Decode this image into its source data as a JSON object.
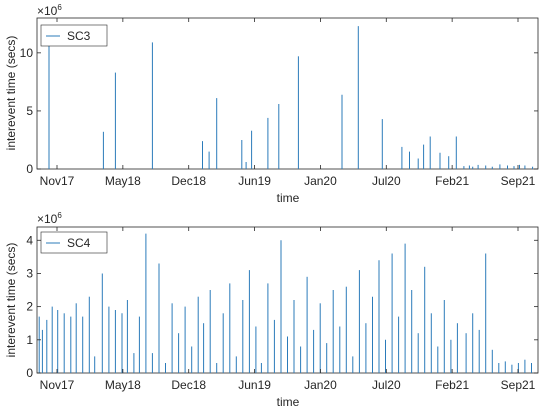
{
  "chart_data": [
    {
      "type": "bar",
      "series": [
        {
          "name": "SC3",
          "color": "#2b7bba"
        }
      ],
      "xlabel": "time",
      "ylabel": "interevent time (secs)",
      "exponent_label": "×10",
      "exponent_power": "6",
      "xticks": [
        "Nov17",
        "May18",
        "Dec18",
        "Jun19",
        "Jan20",
        "Jul20",
        "Feb21",
        "Sep21"
      ],
      "xlim": [
        0,
        46
      ],
      "ylim": [
        0,
        13
      ],
      "yticks": [
        0,
        5,
        10
      ],
      "legend_position": "top-left",
      "grid": false,
      "x": [
        1.1,
        6.1,
        7.2,
        10.6,
        15.2,
        15.8,
        16.5,
        18.8,
        19.2,
        19.7,
        21.2,
        22.2,
        24.0,
        28.0,
        29.5,
        31.7,
        33.5,
        34.2,
        35.0,
        35.5,
        36.1,
        37.0,
        37.8,
        38.5,
        39.2,
        39.7,
        40.0,
        40.5,
        41.2,
        41.8,
        42.5,
        43.2,
        43.8,
        44.3,
        44.8,
        45.5
      ],
      "values": [
        11.8,
        3.2,
        8.3,
        10.9,
        2.4,
        1.5,
        6.1,
        2.5,
        0.6,
        3.3,
        4.4,
        5.6,
        9.7,
        6.4,
        12.3,
        4.3,
        1.9,
        1.5,
        0.9,
        2.1,
        2.8,
        1.4,
        1.1,
        2.8,
        0.25,
        0.3,
        0.2,
        0.35,
        0.3,
        0.2,
        0.4,
        0.3,
        0.25,
        0.35,
        0.3,
        0.2
      ]
    },
    {
      "type": "bar",
      "series": [
        {
          "name": "SC4",
          "color": "#2b7bba"
        }
      ],
      "xlabel": "time",
      "ylabel": "interevent time (secs)",
      "exponent_label": "×10",
      "exponent_power": "6",
      "xticks": [
        "Nov17",
        "May18",
        "Dec18",
        "Jun19",
        "Jan20",
        "Jul20",
        "Feb21",
        "Sep21"
      ],
      "xlim": [
        0,
        46
      ],
      "ylim": [
        0,
        4.4
      ],
      "yticks": [
        0,
        1,
        2,
        3,
        4
      ],
      "legend_position": "top-left",
      "grid": false,
      "x": [
        0.2,
        0.5,
        0.9,
        1.4,
        1.9,
        2.5,
        3.1,
        3.6,
        4.2,
        4.8,
        5.3,
        6.0,
        6.6,
        7.2,
        7.8,
        8.3,
        8.9,
        9.4,
        10.0,
        10.6,
        11.2,
        11.8,
        12.4,
        13.0,
        13.6,
        14.2,
        14.8,
        15.3,
        15.9,
        16.5,
        17.1,
        17.7,
        18.3,
        18.9,
        19.5,
        20.1,
        20.6,
        21.2,
        21.8,
        22.4,
        23.0,
        23.6,
        24.2,
        24.8,
        25.4,
        26.0,
        26.6,
        27.2,
        27.8,
        28.4,
        29.0,
        29.6,
        30.2,
        30.8,
        31.4,
        32.0,
        32.6,
        33.2,
        33.8,
        34.4,
        35.0,
        35.6,
        36.2,
        36.8,
        37.4,
        38.0,
        38.6,
        39.4,
        40.0,
        40.6,
        41.2,
        41.8,
        42.4,
        43.0,
        43.6,
        44.2,
        44.8,
        45.4
      ],
      "values": [
        1.7,
        1.3,
        1.6,
        2.0,
        1.9,
        1.8,
        1.7,
        2.1,
        1.7,
        2.3,
        0.5,
        3.0,
        2.0,
        1.9,
        1.8,
        2.2,
        0.6,
        1.7,
        4.2,
        0.6,
        3.3,
        0.3,
        2.1,
        1.2,
        2.0,
        0.8,
        2.3,
        1.5,
        2.5,
        0.3,
        1.8,
        2.7,
        0.5,
        2.2,
        3.1,
        1.4,
        0.3,
        2.7,
        1.6,
        4.0,
        1.1,
        2.2,
        0.8,
        2.9,
        1.3,
        2.1,
        0.9,
        2.5,
        1.4,
        2.6,
        0.5,
        3.1,
        1.5,
        2.3,
        3.4,
        1.0,
        3.6,
        1.7,
        3.9,
        2.5,
        1.2,
        3.2,
        1.8,
        0.8,
        2.2,
        1.0,
        1.5,
        1.2,
        1.8,
        1.3,
        3.6,
        0.7,
        0.3,
        0.35,
        0.25,
        0.3,
        0.4,
        0.3
      ]
    }
  ]
}
